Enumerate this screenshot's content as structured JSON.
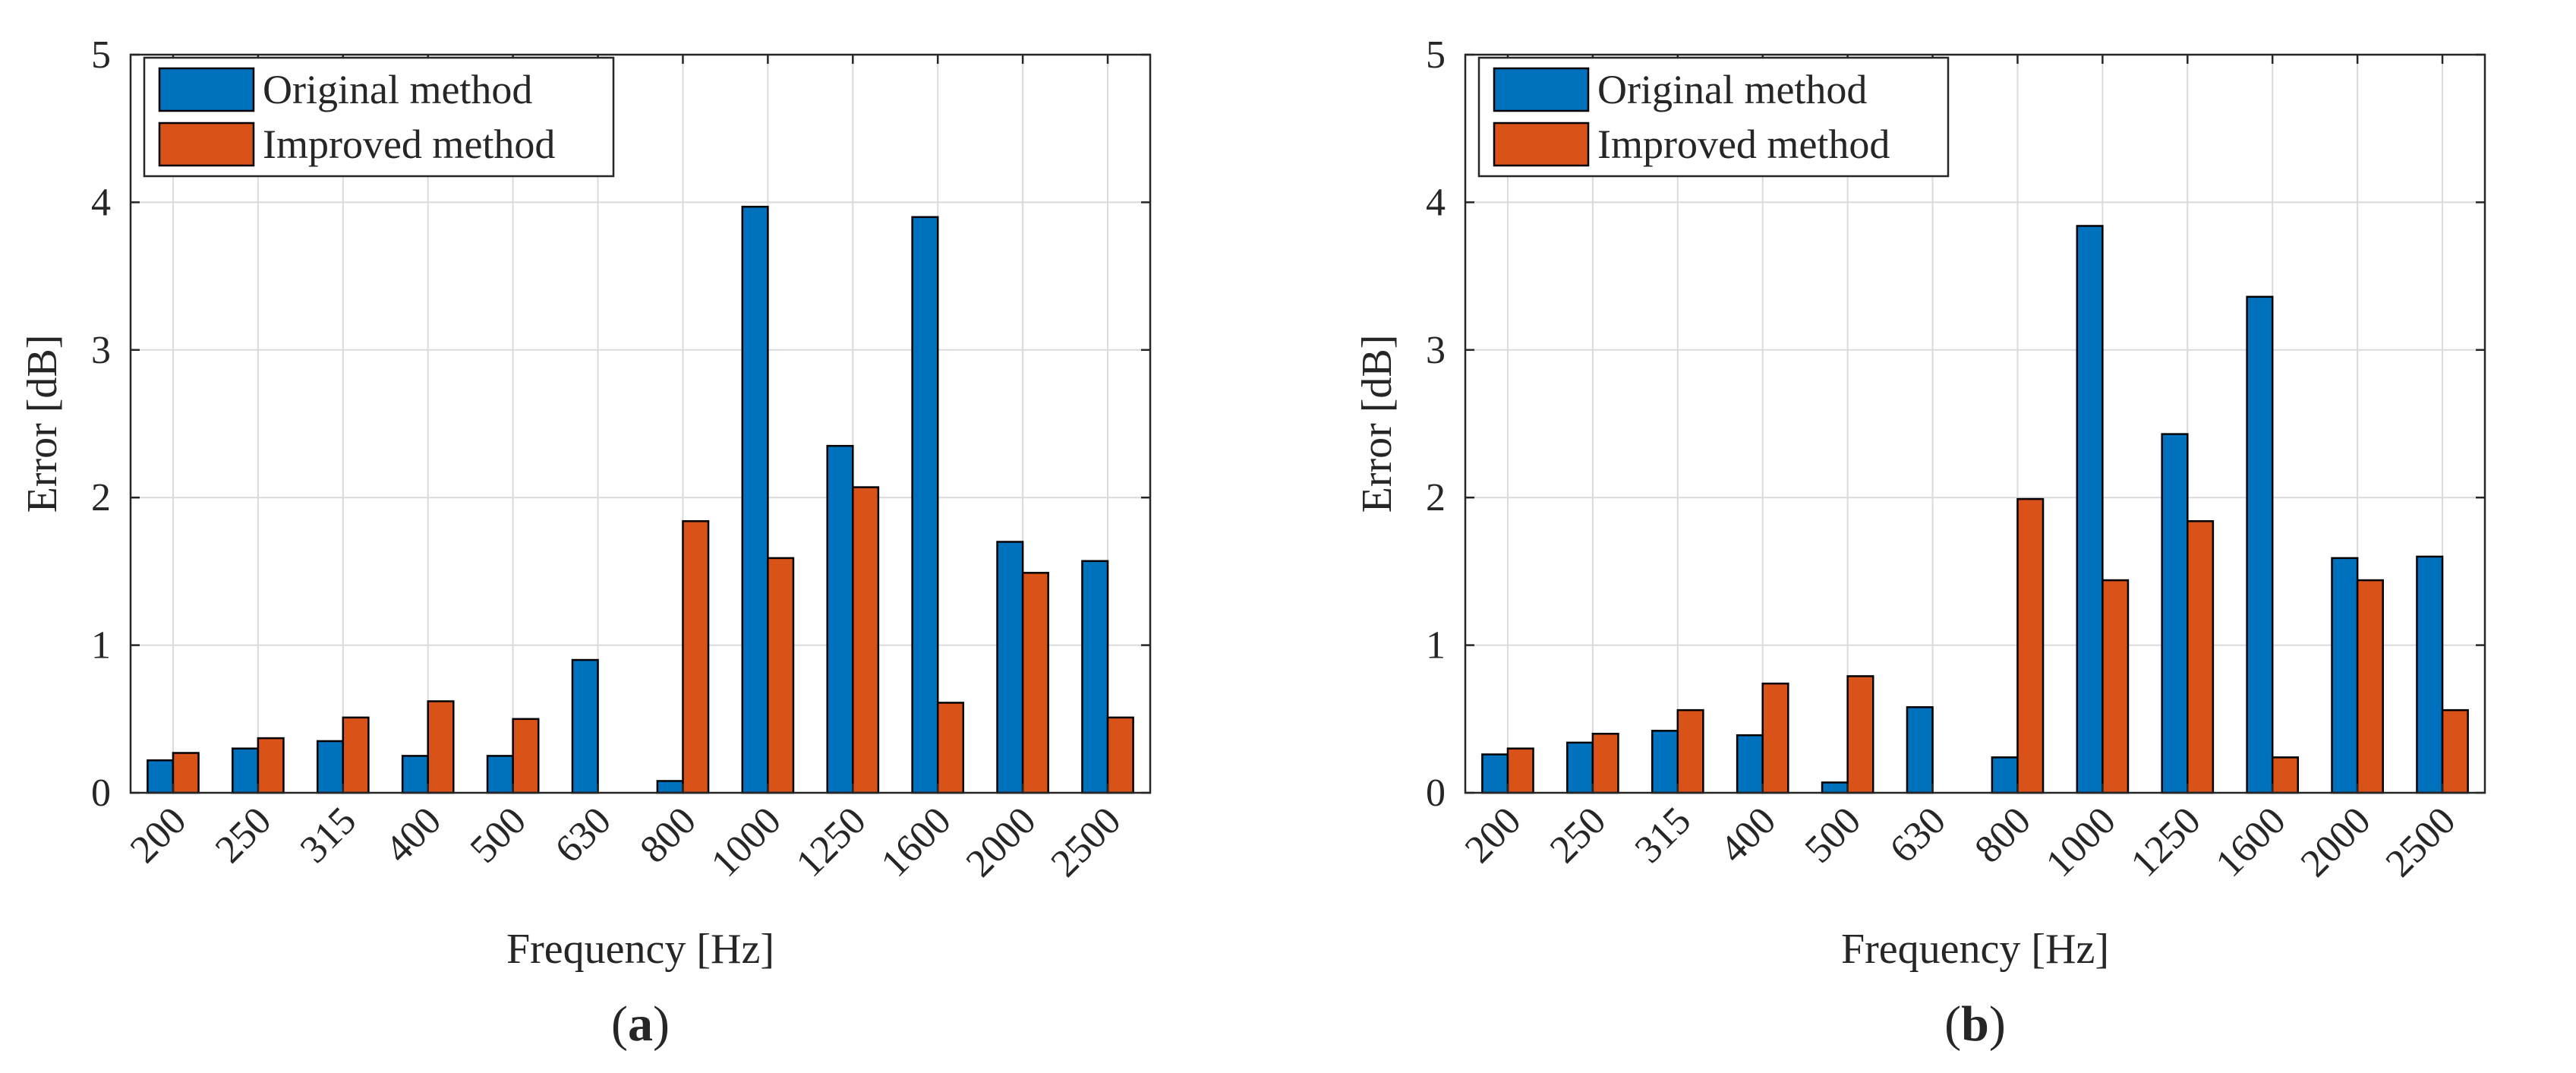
{
  "figure": {
    "colors": {
      "original": "#0072BD",
      "improved": "#D95319",
      "grid": "#DADADA",
      "axis": "#262626"
    }
  },
  "chart_data": [
    {
      "type": "bar",
      "panel_label": "(a)",
      "xlabel": "Frequency [Hz]",
      "ylabel": "Error [dB]",
      "ylim": [
        0,
        5
      ],
      "yticks": [
        "0",
        "1",
        "2",
        "3",
        "4",
        "5"
      ],
      "grid": true,
      "legend_position": "top-left",
      "categories": [
        "200",
        "250",
        "315",
        "400",
        "500",
        "630",
        "800",
        "1000",
        "1250",
        "1600",
        "2000",
        "2500"
      ],
      "series": [
        {
          "name": "Original method",
          "values": [
            0.22,
            0.3,
            0.35,
            0.25,
            0.25,
            0.9,
            0.08,
            3.97,
            2.35,
            3.9,
            1.7,
            1.57
          ]
        },
        {
          "name": "Improved method",
          "values": [
            0.27,
            0.37,
            0.51,
            0.62,
            0.5,
            0.0,
            1.84,
            1.59,
            2.07,
            0.61,
            1.49,
            0.51
          ]
        }
      ]
    },
    {
      "type": "bar",
      "panel_label": "(b)",
      "xlabel": "Frequency [Hz]",
      "ylabel": "Error [dB]",
      "ylim": [
        0,
        5
      ],
      "yticks": [
        "0",
        "1",
        "2",
        "3",
        "4",
        "5"
      ],
      "grid": true,
      "legend_position": "top-left",
      "categories": [
        "200",
        "250",
        "315",
        "400",
        "500",
        "630",
        "800",
        "1000",
        "1250",
        "1600",
        "2000",
        "2500"
      ],
      "series": [
        {
          "name": "Original method",
          "values": [
            0.26,
            0.34,
            0.42,
            0.39,
            0.07,
            0.58,
            0.24,
            3.84,
            2.43,
            3.36,
            1.59,
            1.6
          ]
        },
        {
          "name": "Improved method",
          "values": [
            0.3,
            0.4,
            0.56,
            0.74,
            0.79,
            0.0,
            1.99,
            1.44,
            1.84,
            0.24,
            1.44,
            0.56
          ]
        }
      ]
    }
  ]
}
